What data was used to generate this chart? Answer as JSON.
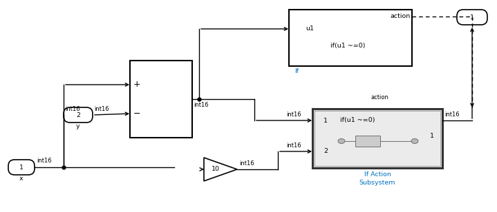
{
  "bg_color": "#ffffff",
  "line_color": "#000000",
  "blue_color": "#0070C0",
  "int16_label": "int16",
  "action_label": "action",
  "if_label": "If",
  "if_condition": "if(u1 ~=0)",
  "x_label": "x",
  "y_label": "y",
  "figw": 7.19,
  "figh": 3.08,
  "dpi": 100
}
